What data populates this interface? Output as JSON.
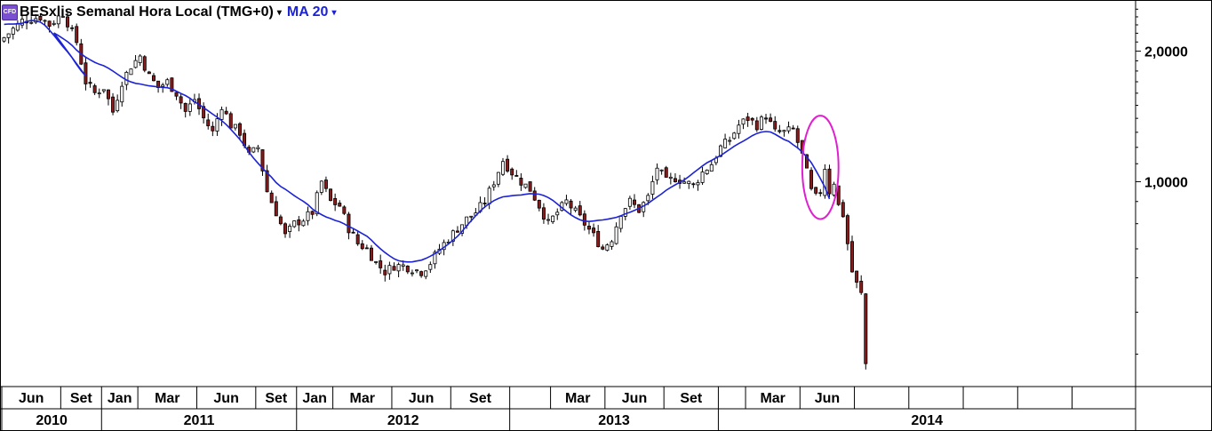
{
  "header": {
    "badge": "CFD",
    "title": "BESxlis Semanal Hora Local (TMG+0)",
    "dropdown": "▾",
    "ma_label": "MA 20",
    "ma_dropdown": "▾"
  },
  "colors": {
    "up": "#ffffff",
    "down": "#8b1a1a",
    "wick": "#000000",
    "ma": "#1c23d6",
    "highlight": "#e020d0"
  },
  "chart_data": {
    "type": "candlestick",
    "title": "BESxlis Semanal Hora Local (TMG+0)",
    "timeframe": "weekly",
    "y_scale": "log",
    "ylim": [
      0.34,
      2.6
    ],
    "y_ticks": [
      {
        "value": 2.0,
        "label": "2,0000"
      },
      {
        "value": 1.0,
        "label": "1,0000"
      }
    ],
    "x_months": [
      {
        "week": 0,
        "label": "Jun"
      },
      {
        "week": 13,
        "label": "Set"
      },
      {
        "week": 22,
        "label": "Jan"
      },
      {
        "week": 30,
        "label": "Mar"
      },
      {
        "week": 43,
        "label": "Jun"
      },
      {
        "week": 56,
        "label": "Set"
      },
      {
        "week": 65,
        "label": "Jan"
      },
      {
        "week": 73,
        "label": "Mar"
      },
      {
        "week": 86,
        "label": "Jun"
      },
      {
        "week": 99,
        "label": "Set"
      },
      {
        "week": 112,
        "label": ""
      },
      {
        "week": 121,
        "label": "Mar"
      },
      {
        "week": 133,
        "label": "Jun"
      },
      {
        "week": 146,
        "label": "Set"
      },
      {
        "week": 158,
        "label": ""
      },
      {
        "week": 164,
        "label": "Mar"
      },
      {
        "week": 176,
        "label": "Jun"
      },
      {
        "week": 188,
        "label": ""
      },
      {
        "week": 200,
        "label": ""
      },
      {
        "week": 212,
        "label": ""
      },
      {
        "week": 224,
        "label": ""
      },
      {
        "week": 236,
        "label": ""
      }
    ],
    "x_years": [
      {
        "start": 0,
        "end": 22,
        "label": "2010"
      },
      {
        "start": 22,
        "end": 65,
        "label": "2011"
      },
      {
        "start": 65,
        "end": 112,
        "label": "2012"
      },
      {
        "start": 112,
        "end": 158,
        "label": "2013"
      },
      {
        "start": 158,
        "end": 250,
        "label": "2014"
      }
    ],
    "week_count": 250,
    "close_anchors": [
      [
        0,
        2.15
      ],
      [
        2,
        2.25
      ],
      [
        4,
        2.35
      ],
      [
        8,
        2.4
      ],
      [
        10,
        2.3
      ],
      [
        13,
        2.45
      ],
      [
        16,
        2.1
      ],
      [
        18,
        1.7
      ],
      [
        20,
        1.6
      ],
      [
        22,
        1.65
      ],
      [
        24,
        1.45
      ],
      [
        26,
        1.7
      ],
      [
        28,
        1.85
      ],
      [
        30,
        1.95
      ],
      [
        32,
        1.75
      ],
      [
        34,
        1.65
      ],
      [
        36,
        1.7
      ],
      [
        38,
        1.6
      ],
      [
        40,
        1.45
      ],
      [
        42,
        1.55
      ],
      [
        44,
        1.4
      ],
      [
        46,
        1.3
      ],
      [
        48,
        1.5
      ],
      [
        50,
        1.35
      ],
      [
        52,
        1.3
      ],
      [
        54,
        1.15
      ],
      [
        56,
        1.2
      ],
      [
        58,
        0.95
      ],
      [
        60,
        0.85
      ],
      [
        62,
        0.75
      ],
      [
        64,
        0.8
      ],
      [
        66,
        0.82
      ],
      [
        68,
        0.85
      ],
      [
        70,
        1.0
      ],
      [
        72,
        0.9
      ],
      [
        74,
        0.88
      ],
      [
        76,
        0.78
      ],
      [
        78,
        0.72
      ],
      [
        80,
        0.7
      ],
      [
        82,
        0.65
      ],
      [
        84,
        0.62
      ],
      [
        86,
        0.64
      ],
      [
        88,
        0.64
      ],
      [
        90,
        0.63
      ],
      [
        92,
        0.62
      ],
      [
        94,
        0.65
      ],
      [
        96,
        0.7
      ],
      [
        98,
        0.74
      ],
      [
        100,
        0.78
      ],
      [
        102,
        0.82
      ],
      [
        104,
        0.85
      ],
      [
        106,
        0.9
      ],
      [
        108,
        1.0
      ],
      [
        110,
        1.12
      ],
      [
        112,
        1.05
      ],
      [
        114,
        1.0
      ],
      [
        116,
        0.96
      ],
      [
        118,
        0.88
      ],
      [
        120,
        0.8
      ],
      [
        122,
        0.85
      ],
      [
        124,
        0.9
      ],
      [
        126,
        0.85
      ],
      [
        128,
        0.8
      ],
      [
        130,
        0.75
      ],
      [
        132,
        0.7
      ],
      [
        134,
        0.74
      ],
      [
        136,
        0.85
      ],
      [
        138,
        0.9
      ],
      [
        140,
        0.86
      ],
      [
        142,
        0.92
      ],
      [
        144,
        1.08
      ],
      [
        146,
        1.0
      ],
      [
        148,
        1.02
      ],
      [
        150,
        1.0
      ],
      [
        152,
        0.98
      ],
      [
        154,
        1.05
      ],
      [
        156,
        1.1
      ],
      [
        158,
        1.2
      ],
      [
        160,
        1.25
      ],
      [
        162,
        1.35
      ],
      [
        164,
        1.4
      ],
      [
        166,
        1.35
      ],
      [
        168,
        1.42
      ],
      [
        170,
        1.3
      ],
      [
        172,
        1.3
      ],
      [
        174,
        1.32
      ],
      [
        176,
        1.15
      ],
      [
        177,
        1.05
      ],
      [
        178,
        0.95
      ],
      [
        179,
        0.92
      ],
      [
        180,
        0.95
      ],
      [
        181,
        1.08
      ],
      [
        182,
        0.95
      ],
      [
        183,
        1.0
      ],
      [
        184,
        0.88
      ],
      [
        185,
        0.84
      ],
      [
        186,
        0.72
      ],
      [
        187,
        0.62
      ],
      [
        188,
        0.58
      ],
      [
        189,
        0.55
      ],
      [
        190,
        0.38
      ]
    ],
    "last_week": 190,
    "ma_period": 20,
    "highlight_ellipse": {
      "week_from": 176,
      "week_to": 184,
      "price_from": 0.82,
      "price_to": 1.42
    }
  }
}
